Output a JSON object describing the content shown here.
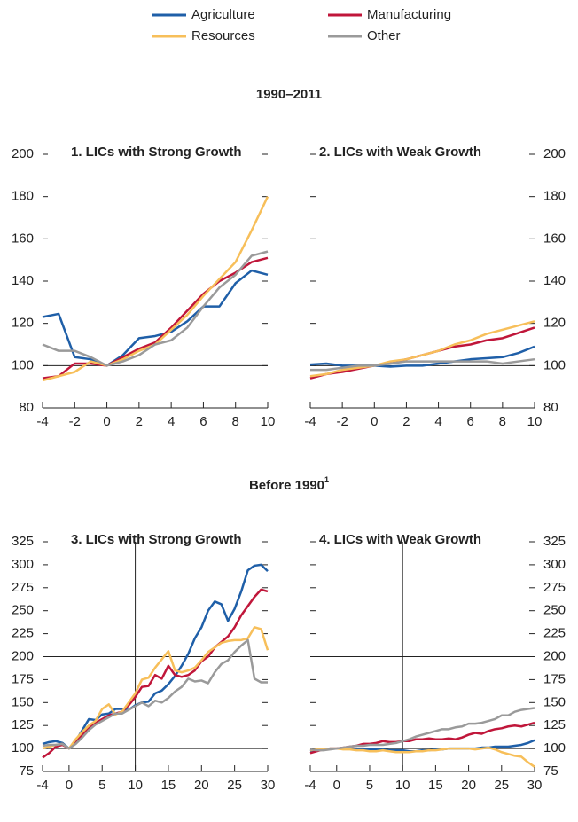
{
  "section_titles": [
    {
      "text": "1990–2011"
    },
    {
      "text": "Before 1990",
      "note": "1"
    }
  ],
  "chart_data": [
    {
      "type": "line",
      "title": "1. LICs with Strong Growth",
      "x": [
        -4,
        -3,
        -2,
        -1,
        0,
        1,
        2,
        3,
        4,
        5,
        6,
        7,
        8,
        9,
        10
      ],
      "series": [
        {
          "name": "Agriculture",
          "color": "#1f5fa8",
          "values": [
            123,
            124.5,
            104,
            103,
            100,
            105,
            113,
            114,
            116,
            121,
            128,
            128,
            139,
            145,
            143
          ]
        },
        {
          "name": "Manufacturing",
          "color": "#c0163a",
          "values": [
            94,
            95,
            101,
            101,
            100,
            104,
            108,
            111,
            118,
            126,
            134,
            140,
            144,
            149,
            151
          ]
        },
        {
          "name": "Resources",
          "color": "#f7bf5a",
          "values": [
            93,
            95,
            97,
            102,
            100,
            103,
            107,
            110,
            117,
            124,
            133,
            141,
            149,
            164,
            180
          ]
        },
        {
          "name": "Other",
          "color": "#9a9a9a",
          "values": [
            110,
            107,
            107,
            104,
            100,
            102,
            105,
            110,
            112,
            118,
            128,
            137,
            143,
            152,
            154
          ]
        }
      ],
      "xlim": [
        -4,
        10
      ],
      "xticks": [
        -4,
        -2,
        0,
        2,
        4,
        6,
        8,
        10
      ],
      "ylim": [
        80,
        200
      ],
      "yticks": [
        80,
        100,
        120,
        140,
        160,
        180,
        200
      ],
      "yaxis_side": "left",
      "hlines": [
        100
      ],
      "vlines": []
    },
    {
      "type": "line",
      "title": "2. LICs with Weak Growth",
      "x": [
        -4,
        -3,
        -2,
        -1,
        0,
        1,
        2,
        3,
        4,
        5,
        6,
        7,
        8,
        9,
        10
      ],
      "series": [
        {
          "name": "Agriculture",
          "color": "#1f5fa8",
          "values": [
            100.5,
            101,
            100,
            100,
            100,
            99.5,
            100,
            100,
            101,
            102,
            103,
            103.5,
            104,
            106,
            109
          ]
        },
        {
          "name": "Manufacturing",
          "color": "#c0163a",
          "values": [
            94,
            96,
            97,
            98.5,
            100,
            101.5,
            103,
            105,
            107,
            109,
            110,
            112,
            113,
            115.5,
            118
          ]
        },
        {
          "name": "Resources",
          "color": "#f7bf5a",
          "values": [
            95,
            96,
            98,
            99,
            100,
            102,
            103,
            105,
            107,
            110,
            112,
            115,
            117,
            119,
            121
          ]
        },
        {
          "name": "Other",
          "color": "#9a9a9a",
          "values": [
            98,
            98,
            99,
            100,
            100,
            101,
            102,
            102,
            102,
            102,
            102,
            102,
            101,
            102,
            103
          ]
        }
      ],
      "xlim": [
        -4,
        10
      ],
      "xticks": [
        -4,
        -2,
        0,
        2,
        4,
        6,
        8,
        10
      ],
      "ylim": [
        80,
        200
      ],
      "yticks": [
        80,
        100,
        120,
        140,
        160,
        180,
        200
      ],
      "yaxis_side": "right",
      "hlines": [
        100
      ],
      "vlines": []
    },
    {
      "type": "line",
      "title": "3. LICs with Strong Growth",
      "x": [
        -4,
        -3,
        -2,
        -1,
        0,
        1,
        2,
        3,
        4,
        5,
        6,
        7,
        8,
        9,
        10,
        11,
        12,
        13,
        14,
        15,
        16,
        17,
        18,
        19,
        20,
        21,
        22,
        23,
        24,
        25,
        26,
        27,
        28,
        29,
        30
      ],
      "series": [
        {
          "name": "Agriculture",
          "color": "#1f5fa8",
          "values": [
            105,
            107,
            108,
            106,
            100,
            108,
            120,
            132,
            131,
            137,
            138,
            143,
            143,
            142,
            147,
            150,
            151,
            160,
            163,
            170,
            179,
            190,
            203,
            220,
            232,
            250,
            260,
            257,
            239,
            252,
            271,
            294,
            299,
            300,
            293
          ]
        },
        {
          "name": "Manufacturing",
          "color": "#c0163a",
          "values": [
            90,
            95,
            102,
            104,
            100,
            106,
            115,
            122,
            128,
            132,
            136,
            138,
            140,
            147,
            156,
            167,
            168,
            180,
            176,
            190,
            180,
            178,
            180,
            185,
            195,
            200,
            210,
            216,
            222,
            232,
            245,
            255,
            265,
            273,
            271
          ]
        },
        {
          "name": "Resources",
          "color": "#f7bf5a",
          "values": [
            100,
            102,
            104,
            105,
            100,
            110,
            118,
            125,
            130,
            143,
            148,
            137,
            140,
            150,
            160,
            175,
            177,
            188,
            197,
            206,
            185,
            183,
            185,
            188,
            196,
            205,
            210,
            215,
            217,
            218,
            218,
            220,
            232,
            230,
            207
          ]
        },
        {
          "name": "Other",
          "color": "#9a9a9a",
          "values": [
            103,
            104,
            104,
            105,
            100,
            105,
            112,
            120,
            126,
            130,
            134,
            138,
            138,
            142,
            146,
            150,
            146,
            152,
            150,
            155,
            162,
            167,
            176,
            173,
            174,
            171,
            183,
            192,
            196,
            205,
            212,
            218,
            176,
            172,
            172
          ]
        }
      ],
      "xlim": [
        -4,
        30
      ],
      "xticks": [
        -4,
        0,
        5,
        10,
        15,
        20,
        25,
        30
      ],
      "ylim": [
        75,
        325
      ],
      "yticks": [
        75,
        100,
        125,
        150,
        175,
        200,
        225,
        250,
        275,
        300,
        325
      ],
      "yaxis_side": "left",
      "hlines": [
        100,
        200
      ],
      "vlines": [
        10
      ]
    },
    {
      "type": "line",
      "title": "4. LICs with Weak Growth",
      "x": [
        -4,
        -3,
        -2,
        -1,
        0,
        1,
        2,
        3,
        4,
        5,
        6,
        7,
        8,
        9,
        10,
        11,
        12,
        13,
        14,
        15,
        16,
        17,
        18,
        19,
        20,
        21,
        22,
        23,
        24,
        25,
        26,
        27,
        28,
        29,
        30
      ],
      "series": [
        {
          "name": "Agriculture",
          "color": "#1f5fa8",
          "values": [
            97,
            98,
            99,
            100,
            100,
            100,
            100,
            99,
            99,
            99,
            99,
            99,
            98,
            98,
            98,
            97,
            97,
            98,
            98,
            99,
            99,
            100,
            100,
            100,
            100,
            100,
            101,
            101,
            102,
            102,
            102,
            103,
            104,
            106,
            109
          ]
        },
        {
          "name": "Manufacturing",
          "color": "#c0163a",
          "values": [
            95,
            97,
            99,
            100,
            100,
            101,
            102,
            103,
            105,
            105,
            106,
            108,
            107,
            107,
            108,
            108,
            110,
            110,
            111,
            110,
            110,
            111,
            110,
            112,
            115,
            117,
            116,
            119,
            121,
            122,
            124,
            125,
            124,
            126,
            128
          ]
        },
        {
          "name": "Resources",
          "color": "#f7bf5a",
          "values": [
            98,
            99,
            99,
            100,
            100,
            99,
            99,
            98,
            98,
            97,
            97,
            98,
            97,
            96,
            96,
            96,
            97,
            97,
            98,
            98,
            99,
            100,
            100,
            100,
            100,
            99,
            100,
            101,
            99,
            96,
            94,
            92,
            91,
            85,
            80
          ]
        },
        {
          "name": "Other",
          "color": "#9a9a9a",
          "values": [
            99,
            98,
            98,
            99,
            100,
            101,
            102,
            103,
            103,
            104,
            104,
            104,
            105,
            106,
            108,
            110,
            113,
            115,
            117,
            119,
            121,
            121,
            123,
            124,
            127,
            127,
            128,
            130,
            132,
            136,
            136,
            140,
            142,
            143,
            144
          ]
        }
      ],
      "xlim": [
        -4,
        30
      ],
      "xticks": [
        -4,
        0,
        5,
        10,
        15,
        20,
        25,
        30
      ],
      "ylim": [
        75,
        325
      ],
      "yticks": [
        75,
        100,
        125,
        150,
        175,
        200,
        225,
        250,
        275,
        300,
        325
      ],
      "yaxis_side": "right",
      "hlines": [
        100,
        200
      ],
      "vlines": [
        10
      ]
    }
  ]
}
